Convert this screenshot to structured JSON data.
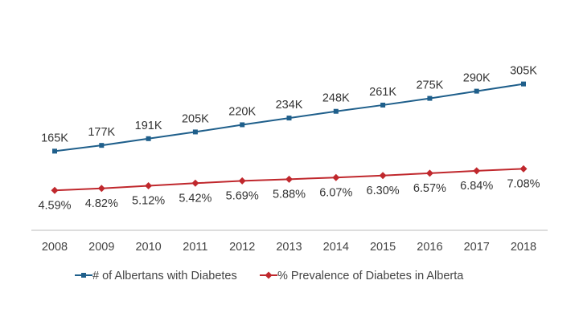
{
  "chart_data": {
    "type": "line",
    "title": "",
    "xlabel": "",
    "ylabel": "",
    "categories": [
      "2008",
      "2009",
      "2010",
      "2011",
      "2012",
      "2013",
      "2014",
      "2015",
      "2016",
      "2017",
      "2018"
    ],
    "series": [
      {
        "name": "# of Albertans with Diabetes",
        "values": [
          165,
          177,
          191,
          205,
          220,
          234,
          248,
          261,
          275,
          290,
          305
        ],
        "labels": [
          "165K",
          "177K",
          "191K",
          "205K",
          "220K",
          "234K",
          "248K",
          "261K",
          "275K",
          "290K",
          "305K"
        ],
        "color": "#1f5f8b",
        "marker": "square",
        "label_position": "above",
        "ylim": [
          0,
          480
        ]
      },
      {
        "name": "% Prevalence of Diabetes in Alberta",
        "values": [
          4.59,
          4.82,
          5.12,
          5.42,
          5.69,
          5.88,
          6.07,
          6.3,
          6.57,
          6.84,
          7.08
        ],
        "labels": [
          "4.59%",
          "4.82%",
          "5.12%",
          "5.42%",
          "5.69%",
          "5.88%",
          "6.07%",
          "6.30%",
          "6.57%",
          "6.84%",
          "7.08%"
        ],
        "color": "#c0282d",
        "marker": "diamond",
        "label_position": "below",
        "ylim": [
          0,
          26.5
        ]
      }
    ],
    "grid": false,
    "y_axes_visible": false,
    "legend_position": "bottom"
  }
}
